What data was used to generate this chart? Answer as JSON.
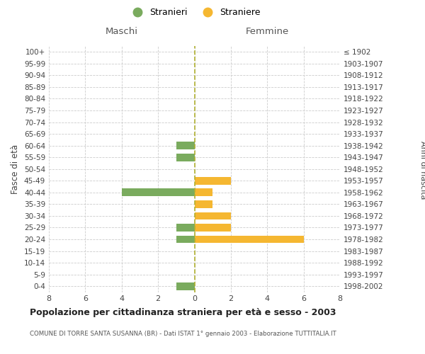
{
  "age_groups": [
    "0-4",
    "5-9",
    "10-14",
    "15-19",
    "20-24",
    "25-29",
    "30-34",
    "35-39",
    "40-44",
    "45-49",
    "50-54",
    "55-59",
    "60-64",
    "65-69",
    "70-74",
    "75-79",
    "80-84",
    "85-89",
    "90-94",
    "95-99",
    "100+"
  ],
  "birth_years": [
    "1998-2002",
    "1993-1997",
    "1988-1992",
    "1983-1987",
    "1978-1982",
    "1973-1977",
    "1968-1972",
    "1963-1967",
    "1958-1962",
    "1953-1957",
    "1948-1952",
    "1943-1947",
    "1938-1942",
    "1933-1937",
    "1928-1932",
    "1923-1927",
    "1918-1922",
    "1913-1917",
    "1908-1912",
    "1903-1907",
    "≤ 1902"
  ],
  "maschi": [
    1,
    0,
    0,
    0,
    1,
    1,
    0,
    0,
    4,
    0,
    0,
    1,
    1,
    0,
    0,
    0,
    0,
    0,
    0,
    0,
    0
  ],
  "femmine": [
    0,
    0,
    0,
    0,
    6,
    2,
    2,
    1,
    1,
    2,
    0,
    0,
    0,
    0,
    0,
    0,
    0,
    0,
    0,
    0,
    0
  ],
  "maschi_color": "#7aab5e",
  "femmine_color": "#f5b731",
  "center_line_color": "#b0b030",
  "grid_color": "#cccccc",
  "background_color": "#ffffff",
  "title": "Popolazione per cittadinanza straniera per età e sesso - 2003",
  "subtitle": "COMUNE DI TORRE SANTA SUSANNA (BR) - Dati ISTAT 1° gennaio 2003 - Elaborazione TUTTITALIA.IT",
  "ylabel_left": "Fasce di età",
  "ylabel_right": "Anni di nascita",
  "header_maschi": "Maschi",
  "header_femmine": "Femmine",
  "legend_maschi": "Stranieri",
  "legend_femmine": "Straniere",
  "xlim": 8,
  "bar_height": 0.65
}
